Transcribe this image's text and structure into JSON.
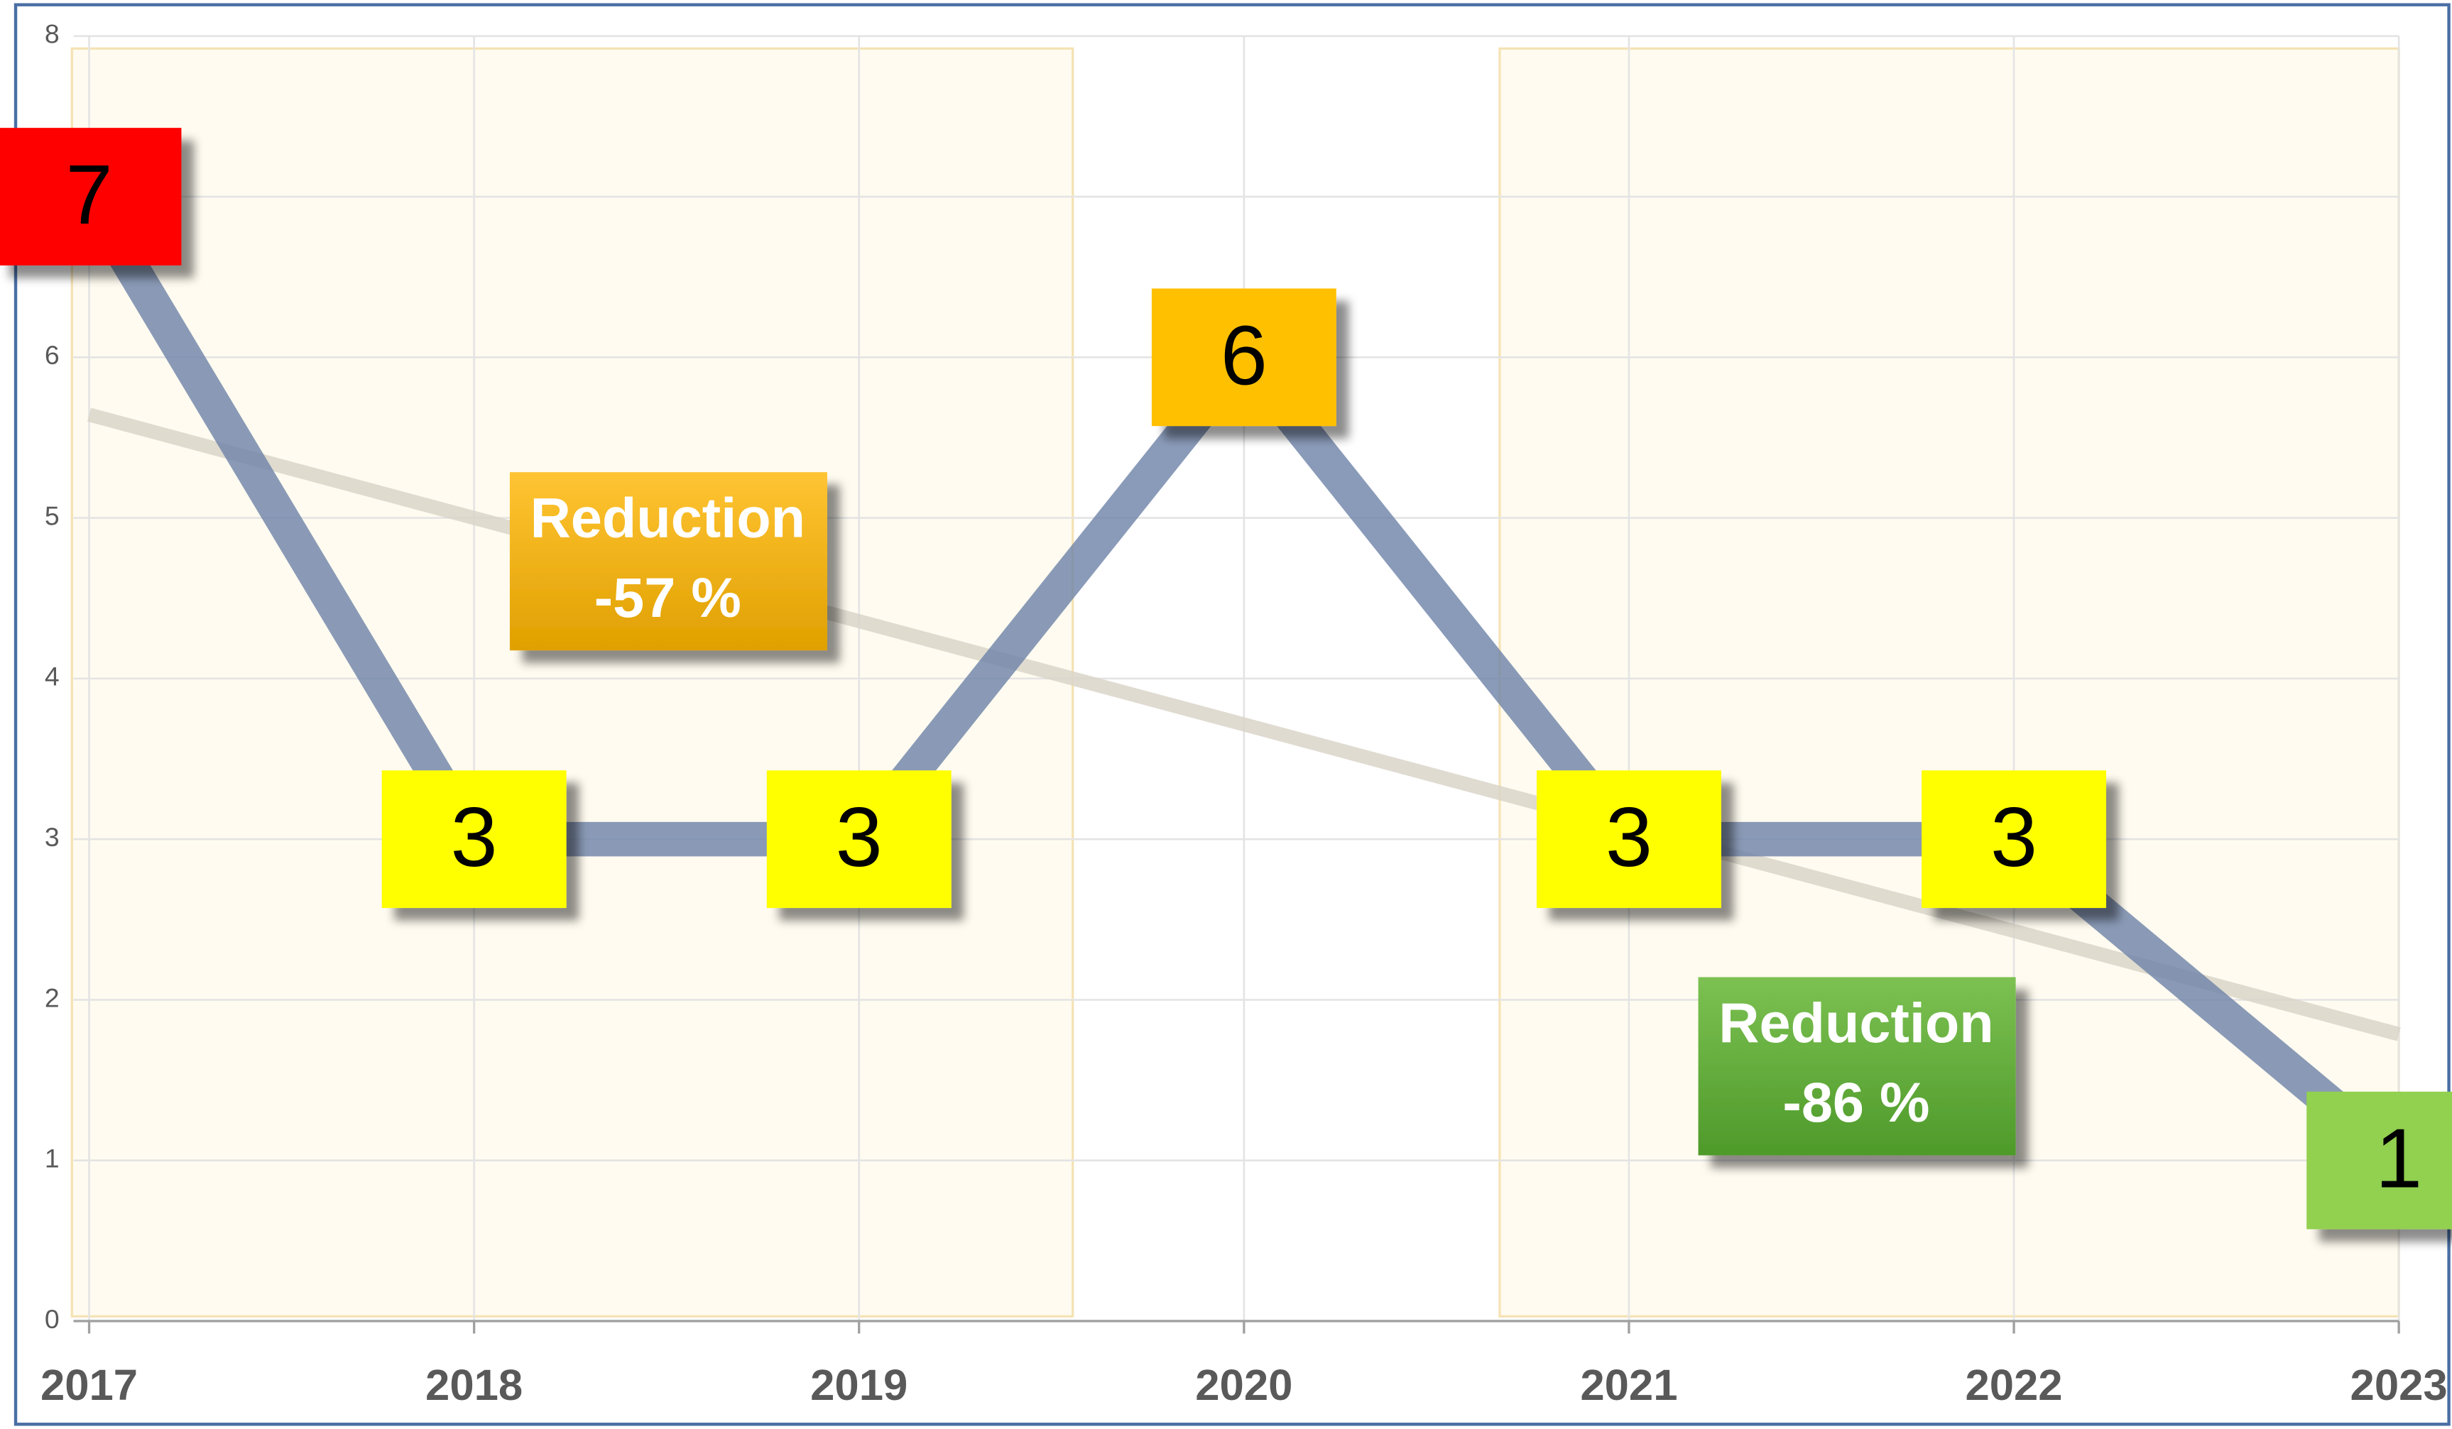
{
  "chart_data": {
    "type": "line",
    "categories": [
      "2017",
      "2018",
      "2019",
      "2020",
      "2021",
      "2022",
      "2023"
    ],
    "series": [
      {
        "values": [
          7,
          3,
          3,
          6,
          3,
          3,
          1
        ],
        "color": "#6d82a8"
      }
    ],
    "label_colors": [
      "#ff0000",
      "#ffff00",
      "#ffff00",
      "#ffc000",
      "#ffff00",
      "#ffff00",
      "#92d050"
    ],
    "ylim": [
      0,
      8
    ],
    "yticks": [
      0,
      1,
      2,
      3,
      4,
      5,
      6,
      7,
      8
    ],
    "grid": true,
    "trendline": true,
    "annotations": [
      {
        "lines": [
          "Reduction",
          "-57 %"
        ]
      },
      {
        "lines": [
          "Reduction",
          "-86 %"
        ]
      }
    ]
  }
}
